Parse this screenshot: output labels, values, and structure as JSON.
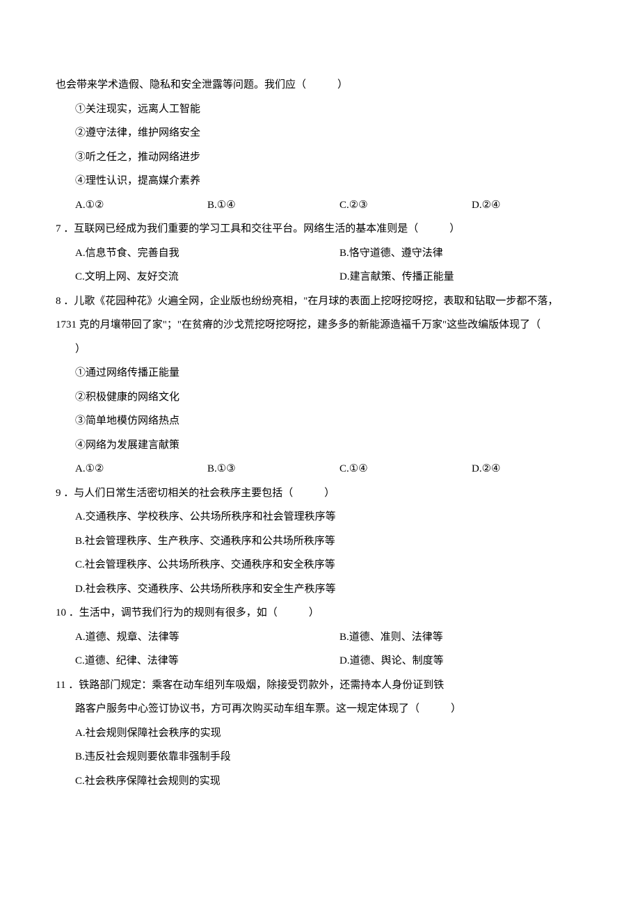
{
  "intro_line": "也会带来学术造假、隐私和安全泄露等问题。我们应（　　　）",
  "intro_options": {
    "s1": "①关注现实，远离人工智能",
    "s2": "②遵守法律，维护网络安全",
    "s3": "③听之任之，推动网络进步",
    "s4": "④理性认识，提高媒介素养",
    "A": "A.①②",
    "B": "B.①④",
    "C": "C.②③",
    "D": "D.②④"
  },
  "q7": {
    "text": "7 ．互联网已经成为我们重要的学习工具和交往平台。网络生活的基本准则是（　　　）",
    "A": "A.信息节食、完善自我",
    "B": "B.恪守道德、遵守法律",
    "C": "C.文明上网、友好交流",
    "D": "D.建言献策、传播正能量"
  },
  "q8": {
    "l1": "8 ．儿歌《花园种花》火遍全网，企业版也纷纷亮相，\"在月球的表面上挖呀挖呀挖，表取和钻取一步都不落，",
    "l2": "1731 克的月壤带回了家\"；\"在贫瘠的沙戈荒挖呀挖呀挖，建多多的新能源造福千万家\"这些改编版体现了（",
    "l3": "）",
    "s1": "①通过网络传播正能量",
    "s2": "②积极健康的网络文化",
    "s3": "③简单地模仿网络热点",
    "s4": "④网络为发展建言献策",
    "A": "A.①②",
    "B": "B.①③",
    "C": "C.①④",
    "D": "D.②④"
  },
  "q9": {
    "text": "9 ．与人们日常生活密切相关的社会秩序主要包括（　　　）",
    "A": "A.交通秩序、学校秩序、公共场所秩序和社会管理秩序等",
    "B": "B.社会管理秩序、生产秩序、交通秩序和公共场所秩序等",
    "C": "C.社会管理秩序、公共场所秩序、交通秩序和安全秩序等",
    "D": "D.社会秩序、交通秩序、公共场所秩序和安全生产秩序等"
  },
  "q10": {
    "text": "10 ．生活中，调节我们行为的规则有很多，如（　　　）",
    "A": "A.道德、规章、法律等",
    "B": "B.道德、准则、法律等",
    "C": "C.道德、纪律、法律等",
    "D": "D.道德、舆论、制度等"
  },
  "q11": {
    "l1": "11 ．铁路部门规定：乘客在动车组列车吸烟，除接受罚款外，还需持本人身份证到铁",
    "l2": "路客户服务中心签订协议书，方可再次购买动车组车票。这一规定体现了（　　　）",
    "A": "A.社会规则保障社会秩序的实现",
    "B": "B.违反社会规则要依靠非强制手段",
    "C": "C.社会秩序保障社会规则的实现"
  }
}
